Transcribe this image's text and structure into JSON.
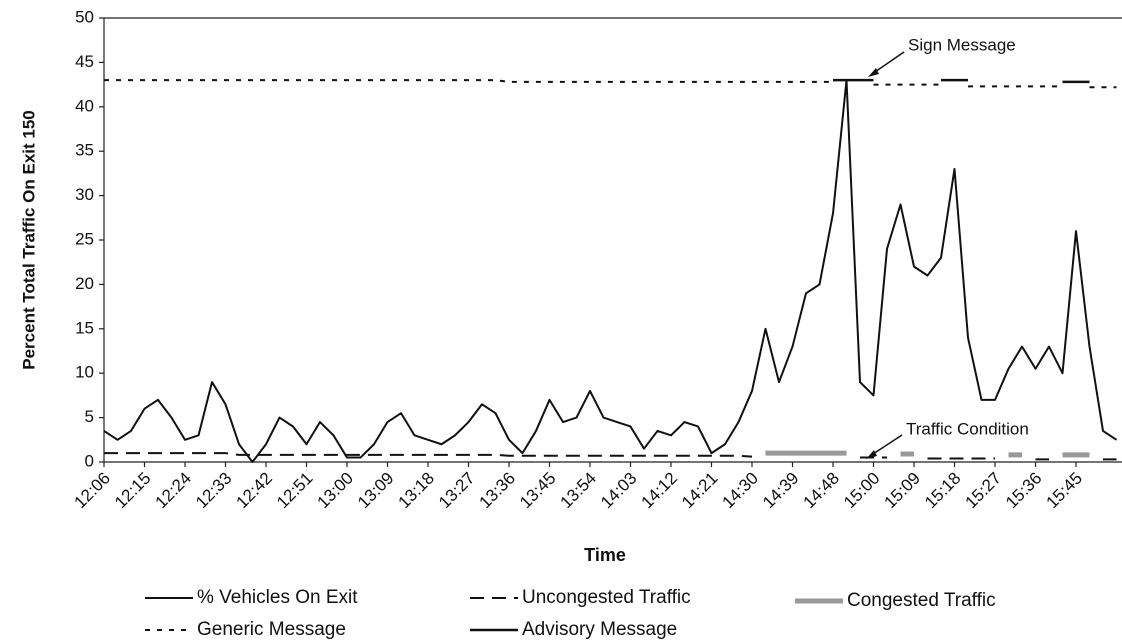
{
  "chart_data": {
    "type": "line",
    "x_label": "Time",
    "y_label": "Percent Total Traffic On Exit 150",
    "annotations": [
      "Sign Message",
      "Traffic Condition"
    ],
    "categories": [
      "12:06",
      null,
      null,
      "12:15",
      null,
      null,
      "12:24",
      null,
      null,
      "12:33",
      null,
      null,
      "12:42",
      null,
      null,
      "12:51",
      null,
      null,
      "13:00",
      null,
      null,
      "13:09",
      null,
      null,
      "13:18",
      null,
      null,
      "13:27",
      null,
      null,
      "13:36",
      null,
      null,
      "13:45",
      null,
      null,
      "13:54",
      null,
      null,
      "14:03",
      null,
      null,
      "14:12",
      null,
      null,
      "14:21",
      null,
      null,
      "14:30",
      null,
      null,
      "14:39",
      null,
      null,
      "14:48",
      null,
      null,
      "15:00",
      null,
      null,
      "15:09",
      null,
      null,
      "15:18",
      null,
      null,
      "15:27",
      null,
      null,
      "15:36",
      null,
      null,
      "15:45",
      null,
      null,
      null
    ],
    "ylim": [
      0,
      50
    ],
    "yticks": [
      0,
      5,
      10,
      15,
      20,
      25,
      30,
      35,
      40,
      45,
      50
    ],
    "series": [
      {
        "name": "% Vehicles On Exit",
        "color": "#111111",
        "dash": "solid",
        "width": 2,
        "values": [
          3.5,
          2.5,
          3.5,
          6,
          7,
          5,
          2.5,
          3,
          9,
          6.5,
          2,
          0,
          2,
          5,
          4,
          2,
          4.5,
          3,
          0.5,
          0.5,
          2,
          4.5,
          5.5,
          3,
          2.5,
          2,
          3,
          4.5,
          6.5,
          5.5,
          2.5,
          1,
          3.5,
          7,
          4.5,
          5,
          8,
          5,
          4.5,
          4,
          1.5,
          3.5,
          3,
          4.5,
          4,
          1,
          2,
          4.5,
          8,
          15,
          9,
          13,
          19,
          20,
          28,
          43,
          9,
          7.5,
          24,
          29,
          22,
          21,
          23,
          33,
          14,
          7,
          7,
          10.5,
          13,
          10.5,
          13,
          10,
          26,
          13,
          3.5,
          2.5
        ]
      },
      {
        "name": "Uncongested Traffic",
        "color": "#111111",
        "dash": "long",
        "width": 2,
        "values": [
          1,
          1,
          1,
          1,
          1,
          1,
          1,
          1,
          1,
          1,
          0.8,
          0.8,
          0.8,
          0.8,
          0.8,
          0.8,
          0.8,
          0.8,
          0.8,
          0.8,
          0.8,
          0.8,
          0.8,
          0.8,
          0.8,
          0.8,
          0.8,
          0.8,
          0.8,
          0.8,
          0.7,
          0.7,
          0.7,
          0.7,
          0.7,
          0.7,
          0.7,
          0.7,
          0.7,
          0.7,
          0.7,
          0.7,
          0.7,
          0.7,
          0.7,
          0.7,
          0.7,
          0.7,
          0.6,
          null,
          null,
          null,
          null,
          null,
          null,
          null,
          0.5,
          0.5,
          0.5,
          null,
          null,
          0.4,
          0.4,
          0.4,
          0.4,
          0.4,
          0.4,
          null,
          null,
          0.3,
          0.3,
          null,
          null,
          null,
          0.3,
          0.3
        ]
      },
      {
        "name": "Congested Traffic",
        "color": "#999999",
        "dash": "solid",
        "width": 5,
        "values": [
          null,
          null,
          null,
          null,
          null,
          null,
          null,
          null,
          null,
          null,
          null,
          null,
          null,
          null,
          null,
          null,
          null,
          null,
          null,
          null,
          null,
          null,
          null,
          null,
          null,
          null,
          null,
          null,
          null,
          null,
          null,
          null,
          null,
          null,
          null,
          null,
          null,
          null,
          null,
          null,
          null,
          null,
          null,
          null,
          null,
          null,
          null,
          null,
          null,
          1,
          1,
          1,
          1,
          1,
          1,
          1,
          null,
          null,
          null,
          0.9,
          0.9,
          null,
          null,
          null,
          null,
          null,
          null,
          0.8,
          0.8,
          null,
          null,
          0.8,
          0.8,
          0.8,
          null,
          null
        ]
      },
      {
        "name": "Generic Message",
        "color": "#111111",
        "dash": "short",
        "width": 2,
        "values": [
          43,
          43,
          43,
          43,
          43,
          43,
          43,
          43,
          43,
          43,
          43,
          43,
          43,
          43,
          43,
          43,
          43,
          43,
          43,
          43,
          43,
          43,
          43,
          43,
          43,
          43,
          43,
          43,
          43,
          43,
          42.8,
          42.8,
          42.8,
          42.8,
          42.8,
          42.8,
          42.8,
          42.8,
          42.8,
          42.8,
          42.8,
          42.8,
          42.8,
          42.8,
          42.8,
          42.8,
          42.8,
          42.8,
          42.8,
          42.8,
          42.8,
          42.8,
          42.8,
          42.8,
          42.8,
          null,
          null,
          42.5,
          42.5,
          42.5,
          42.5,
          42.5,
          42.5,
          null,
          42.3,
          42.3,
          42.3,
          42.3,
          42.3,
          42.3,
          42.3,
          42.3,
          null,
          42.2,
          42.2,
          42.2
        ]
      },
      {
        "name": "Advisory Message",
        "color": "#111111",
        "dash": "solid",
        "width": 2.5,
        "values": [
          null,
          null,
          null,
          null,
          null,
          null,
          null,
          null,
          null,
          null,
          null,
          null,
          null,
          null,
          null,
          null,
          null,
          null,
          null,
          null,
          null,
          null,
          null,
          null,
          null,
          null,
          null,
          null,
          null,
          null,
          null,
          null,
          null,
          null,
          null,
          null,
          null,
          null,
          null,
          null,
          null,
          null,
          null,
          null,
          null,
          null,
          null,
          null,
          null,
          null,
          null,
          null,
          null,
          null,
          43,
          43,
          43,
          43,
          null,
          null,
          null,
          null,
          43,
          43,
          43,
          null,
          null,
          null,
          null,
          null,
          null,
          42.8,
          42.8,
          42.8,
          null,
          null
        ]
      }
    ]
  }
}
